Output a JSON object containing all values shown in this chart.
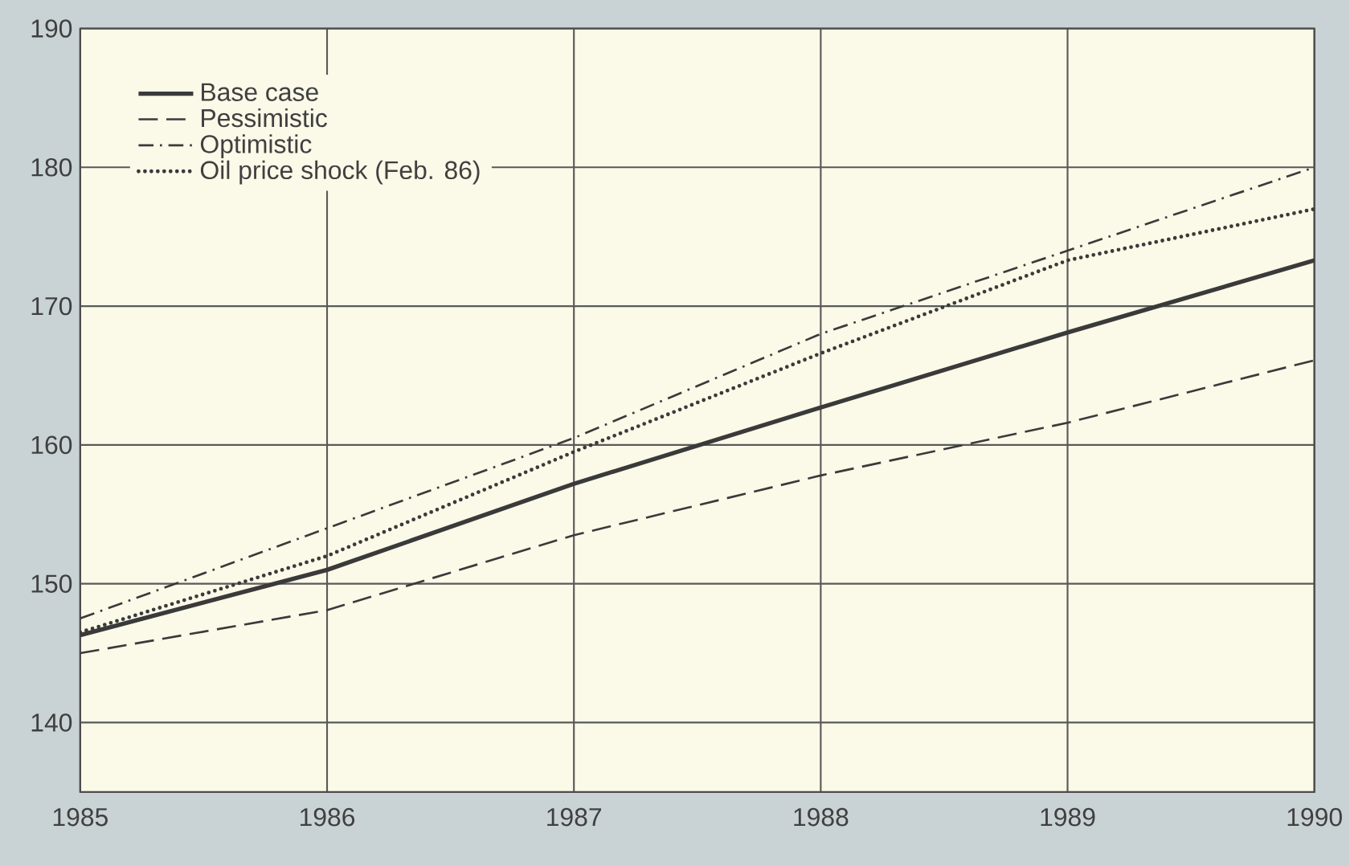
{
  "chart_data": {
    "type": "line",
    "x": [
      1985,
      1986,
      1987,
      1988,
      1989,
      1990
    ],
    "series": [
      {
        "name": "Base case",
        "color": "#3a3a3a",
        "line_style": "solid",
        "values": [
          146.3,
          151,
          157.2,
          162.7,
          168.1,
          173.3
        ]
      },
      {
        "name": "Pessimistic",
        "color": "#3a3a3a",
        "line_style": "dashed",
        "values": [
          145,
          148.1,
          153.5,
          157.8,
          161.6,
          166.1
        ]
      },
      {
        "name": "Optimistic",
        "color": "#3a3a3a",
        "line_style": "dashdot",
        "values": [
          147.5,
          154,
          160.5,
          168,
          174,
          180
        ]
      },
      {
        "name": "Oil price shock (Feb. 86)",
        "color": "#3a3a3a",
        "line_style": "dotted",
        "values": [
          146.5,
          152,
          159.5,
          166.6,
          173.3,
          177
        ]
      }
    ],
    "xlim": [
      1985,
      1990
    ],
    "xticks": [
      1985,
      1986,
      1987,
      1988,
      1989,
      1990
    ],
    "ylim": [
      135,
      190
    ],
    "yticks": [
      140,
      150,
      160,
      170,
      180,
      190
    ],
    "grid": true,
    "legend": "top left",
    "marker": "none"
  }
}
